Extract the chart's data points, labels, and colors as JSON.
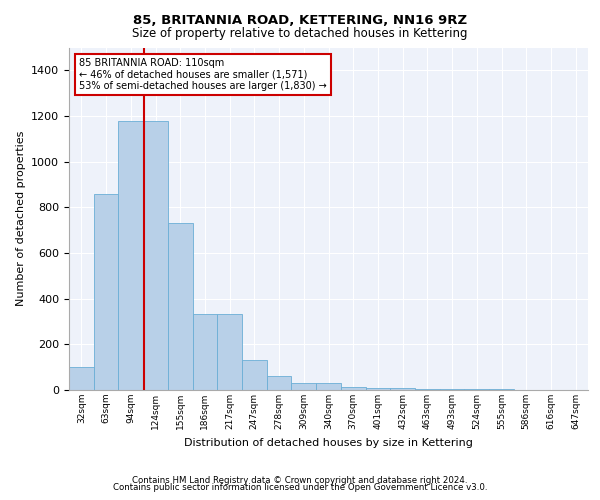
{
  "title1": "85, BRITANNIA ROAD, KETTERING, NN16 9RZ",
  "title2": "Size of property relative to detached houses in Kettering",
  "xlabel": "Distribution of detached houses by size in Kettering",
  "ylabel": "Number of detached properties",
  "footer1": "Contains HM Land Registry data © Crown copyright and database right 2024.",
  "footer2": "Contains public sector information licensed under the Open Government Licence v3.0.",
  "annotation_line1": "85 BRITANNIA ROAD: 110sqm",
  "annotation_line2": "← 46% of detached houses are smaller (1,571)",
  "annotation_line3": "53% of semi-detached houses are larger (1,830) →",
  "bar_color": "#b8d0e8",
  "bar_edge_color": "#6baed6",
  "vline_color": "#cc0000",
  "annotation_box_edge_color": "#cc0000",
  "background_color": "#eef2fa",
  "grid_color": "#ffffff",
  "categories": [
    "32sqm",
    "63sqm",
    "94sqm",
    "124sqm",
    "155sqm",
    "186sqm",
    "217sqm",
    "247sqm",
    "278sqm",
    "309sqm",
    "340sqm",
    "370sqm",
    "401sqm",
    "432sqm",
    "463sqm",
    "493sqm",
    "524sqm",
    "555sqm",
    "586sqm",
    "616sqm",
    "647sqm"
  ],
  "values": [
    100,
    860,
    1180,
    1180,
    730,
    335,
    335,
    130,
    60,
    30,
    30,
    15,
    10,
    10,
    5,
    5,
    5,
    3,
    2,
    2,
    2
  ],
  "ylim": [
    0,
    1500
  ],
  "yticks": [
    0,
    200,
    400,
    600,
    800,
    1000,
    1200,
    1400
  ],
  "vline_pos": 2.53
}
